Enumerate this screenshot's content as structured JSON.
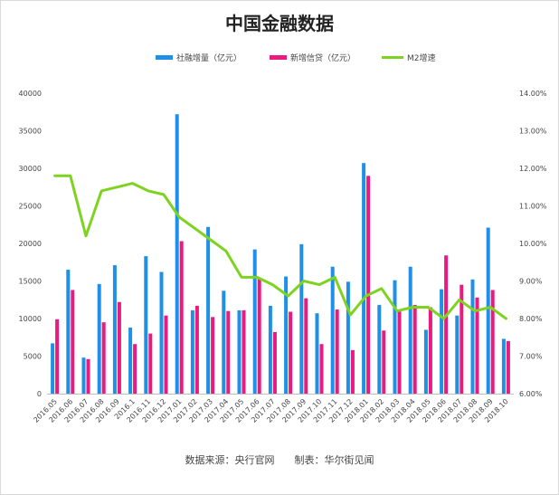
{
  "chart_data": {
    "type": "bar",
    "title": "中国金融数据",
    "categories": [
      "2016.05",
      "2016.06",
      "2016.07",
      "2016.08",
      "2016.09",
      "2016.1",
      "2016.11",
      "2016.12",
      "2017.01",
      "2017.02",
      "2017.03",
      "2017.04",
      "2017.05",
      "2017.06",
      "2017.07",
      "2017.08",
      "2017.09",
      "2017.10",
      "2017.11",
      "2017.12",
      "2018.01",
      "2018.02",
      "2018.03",
      "2018.04",
      "2018.05",
      "2018.06",
      "2018.07",
      "2018.08",
      "2018.09",
      "2018.10"
    ],
    "series": [
      {
        "name": "社融增量（亿元）",
        "type": "bar",
        "axis": "left",
        "color": "#1e90e8",
        "values": [
          6700,
          16500,
          4800,
          14600,
          17100,
          8800,
          18300,
          16200,
          37200,
          11100,
          22200,
          13700,
          11100,
          19200,
          11700,
          15600,
          19900,
          10700,
          16900,
          14900,
          30700,
          11800,
          15100,
          16900,
          8500,
          13900,
          10400,
          15200,
          22100,
          7300
        ]
      },
      {
        "name": "新增信贷（亿元）",
        "type": "bar",
        "axis": "left",
        "color": "#ea1a7f",
        "values": [
          9900,
          13800,
          4600,
          9500,
          12200,
          6600,
          8000,
          10400,
          20300,
          11700,
          10200,
          11000,
          11100,
          15400,
          8200,
          10900,
          12700,
          6600,
          11200,
          5800,
          29000,
          8400,
          11200,
          11800,
          11500,
          18400,
          14500,
          12800,
          13800,
          7000
        ]
      },
      {
        "name": "M2增速",
        "type": "line",
        "axis": "right",
        "color": "#7ed321",
        "values": [
          11.8,
          11.8,
          10.2,
          11.4,
          11.5,
          11.6,
          11.4,
          11.3,
          10.7,
          10.4,
          10.1,
          9.8,
          9.1,
          9.1,
          8.9,
          8.6,
          9.0,
          8.9,
          9.1,
          8.1,
          8.6,
          8.8,
          8.2,
          8.3,
          8.3,
          8.0,
          8.5,
          8.2,
          8.3,
          8.0
        ]
      }
    ],
    "y_left": {
      "min": 0,
      "max": 40000,
      "ticks": [
        "0",
        "5000",
        "10000",
        "15000",
        "20000",
        "25000",
        "30000",
        "35000",
        "40000"
      ]
    },
    "y_right": {
      "min": 6.0,
      "max": 14.0,
      "ticks": [
        "6.00%",
        "7.00%",
        "8.00%",
        "9.00%",
        "10.00%",
        "11.00%",
        "12.00%",
        "13.00%",
        "14.00%"
      ]
    },
    "legend_position": "top",
    "grid": false
  },
  "source_line": "数据来源：央行官网　　制表：华尔街见闻"
}
